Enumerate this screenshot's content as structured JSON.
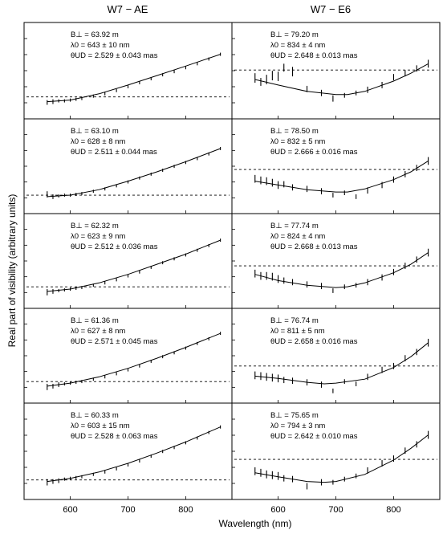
{
  "titles": {
    "left": "W7 − AE",
    "right": "W7 − E6"
  },
  "ylabel": "Real part of visibility (arbitrary units)",
  "xlabel": "Wavelength (nm)",
  "chart_data": [
    {
      "type": "line",
      "column": "W7 − AE",
      "xlim": [
        520,
        880
      ],
      "x_ticks": [
        600,
        700,
        800
      ],
      "panels": [
        {
          "annotations": [
            "B⊥ = 63.92 m",
            "λ0 = 643 ± 10 nm",
            "θUD = 2.529 ± 0.043 mas"
          ],
          "model": {
            "x": [
              560,
              600,
              650,
              700,
              750,
              800,
              860
            ],
            "y": [
              0.12,
              0.14,
              0.22,
              0.33,
              0.45,
              0.57,
              0.72
            ]
          },
          "data": {
            "x": [
              560,
              570,
              580,
              590,
              600,
              610,
              620,
              640,
              660,
              680,
              700,
              720,
              740,
              760,
              780,
              800,
              820,
              840,
              860
            ],
            "y": [
              0.11,
              0.12,
              0.13,
              0.13,
              0.14,
              0.15,
              0.16,
              0.19,
              0.22,
              0.26,
              0.31,
              0.36,
              0.41,
              0.46,
              0.5,
              0.55,
              0.6,
              0.66,
              0.72
            ],
            "err": [
              0.03,
              0.03,
              0.02,
              0.02,
              0.02,
              0.02,
              0.02,
              0.02,
              0.02,
              0.02,
              0.02,
              0.02,
              0.02,
              0.02,
              0.02,
              0.02,
              0.02,
              0.02,
              0.02
            ]
          },
          "zero_level": 0.18
        },
        {
          "annotations": [
            "B⊥ = 63.10 m",
            "λ0 = 628 ± 8 nm",
            "θUD = 2.511 ± 0.044 mas"
          ],
          "model": {
            "x": [
              560,
              600,
              650,
              700,
              750,
              800,
              860
            ],
            "y": [
              0.12,
              0.14,
              0.21,
              0.32,
              0.44,
              0.57,
              0.74
            ]
          },
          "data": {
            "x": [
              560,
              570,
              580,
              590,
              600,
              610,
              620,
              640,
              660,
              680,
              700,
              720,
              740,
              760,
              780,
              800,
              820,
              840,
              860
            ],
            "y": [
              0.15,
              0.12,
              0.13,
              0.14,
              0.14,
              0.15,
              0.16,
              0.19,
              0.22,
              0.26,
              0.31,
              0.36,
              0.41,
              0.46,
              0.51,
              0.56,
              0.61,
              0.67,
              0.74
            ],
            "err": [
              0.04,
              0.03,
              0.02,
              0.02,
              0.02,
              0.02,
              0.02,
              0.02,
              0.02,
              0.02,
              0.02,
              0.02,
              0.02,
              0.02,
              0.02,
              0.02,
              0.02,
              0.02,
              0.02
            ]
          },
          "zero_level": 0.14
        },
        {
          "annotations": [
            "B⊥ = 62.32 m",
            "λ0 = 623 ± 9 nm",
            "θUD = 2.512 ± 0.036 mas"
          ],
          "model": {
            "x": [
              560,
              600,
              650,
              700,
              750,
              800,
              860
            ],
            "y": [
              0.12,
              0.15,
              0.23,
              0.34,
              0.47,
              0.6,
              0.78
            ]
          },
          "data": {
            "x": [
              560,
              570,
              580,
              590,
              600,
              610,
              620,
              640,
              660,
              680,
              700,
              720,
              740,
              760,
              780,
              800,
              820,
              840,
              860
            ],
            "y": [
              0.11,
              0.12,
              0.13,
              0.14,
              0.15,
              0.16,
              0.17,
              0.2,
              0.23,
              0.27,
              0.32,
              0.37,
              0.43,
              0.49,
              0.54,
              0.59,
              0.65,
              0.71,
              0.78
            ],
            "err": [
              0.04,
              0.03,
              0.02,
              0.02,
              0.02,
              0.02,
              0.02,
              0.02,
              0.02,
              0.02,
              0.02,
              0.02,
              0.02,
              0.02,
              0.02,
              0.02,
              0.02,
              0.02,
              0.02
            ]
          },
          "zero_level": 0.18
        },
        {
          "annotations": [
            "B⊥ = 61.36 m",
            "λ0 = 627 ± 8 nm",
            "θUD = 2.571 ± 0.045 mas"
          ],
          "model": {
            "x": [
              560,
              600,
              650,
              700,
              750,
              800,
              860
            ],
            "y": [
              0.12,
              0.16,
              0.24,
              0.35,
              0.48,
              0.62,
              0.8
            ]
          },
          "data": {
            "x": [
              560,
              570,
              580,
              590,
              600,
              610,
              620,
              640,
              660,
              680,
              700,
              720,
              740,
              760,
              780,
              800,
              820,
              840,
              860
            ],
            "y": [
              0.11,
              0.12,
              0.14,
              0.15,
              0.16,
              0.17,
              0.18,
              0.21,
              0.24,
              0.28,
              0.33,
              0.38,
              0.44,
              0.5,
              0.55,
              0.61,
              0.67,
              0.73,
              0.8
            ],
            "err": [
              0.04,
              0.03,
              0.03,
              0.02,
              0.02,
              0.02,
              0.02,
              0.02,
              0.02,
              0.02,
              0.02,
              0.02,
              0.02,
              0.02,
              0.02,
              0.02,
              0.02,
              0.02,
              0.02
            ]
          },
          "zero_level": 0.18
        },
        {
          "annotations": [
            "B⊥ = 60.33 m",
            "λ0 = 603 ± 15 nm",
            "θUD = 2.528 ± 0.063 mas"
          ],
          "model": {
            "x": [
              560,
              600,
              650,
              700,
              750,
              800,
              860
            ],
            "y": [
              0.13,
              0.17,
              0.25,
              0.36,
              0.49,
              0.63,
              0.82
            ]
          },
          "data": {
            "x": [
              560,
              570,
              580,
              590,
              600,
              610,
              620,
              640,
              660,
              680,
              700,
              720,
              740,
              760,
              780,
              800,
              820,
              840,
              860
            ],
            "y": [
              0.12,
              0.13,
              0.14,
              0.16,
              0.17,
              0.18,
              0.19,
              0.22,
              0.25,
              0.29,
              0.34,
              0.39,
              0.45,
              0.51,
              0.56,
              0.62,
              0.68,
              0.75,
              0.82
            ],
            "err": [
              0.04,
              0.03,
              0.03,
              0.02,
              0.02,
              0.02,
              0.02,
              0.02,
              0.02,
              0.02,
              0.02,
              0.02,
              0.02,
              0.02,
              0.02,
              0.02,
              0.02,
              0.02,
              0.02
            ]
          },
          "zero_level": 0.15
        }
      ]
    },
    {
      "type": "line",
      "column": "W7 − E6",
      "xlim": [
        520,
        880
      ],
      "x_ticks": [
        600,
        700,
        800
      ],
      "panels": [
        {
          "annotations": [
            "B⊥ = 79.20 m",
            "λ0 = 834 ± 4 nm",
            "θUD = 2.648 ± 0.013 mas"
          ],
          "model": {
            "x": [
              560,
              600,
              650,
              700,
              720,
              750,
              800,
              830,
              860
            ],
            "y": [
              0.4,
              0.33,
              0.25,
              0.21,
              0.21,
              0.25,
              0.38,
              0.48,
              0.6
            ]
          },
          "data": {
            "x": [
              560,
              570,
              580,
              590,
              600,
              610,
              625,
              650,
              675,
              695,
              715,
              735,
              755,
              780,
              800,
              820,
              840,
              860
            ],
            "y": [
              0.42,
              0.37,
              0.4,
              0.45,
              0.44,
              0.55,
              0.5,
              0.28,
              0.23,
              0.16,
              0.2,
              0.23,
              0.27,
              0.33,
              0.43,
              0.48,
              0.54,
              0.6
            ],
            "err": [
              0.06,
              0.05,
              0.06,
              0.06,
              0.06,
              0.05,
              0.06,
              0.04,
              0.04,
              0.04,
              0.03,
              0.03,
              0.04,
              0.04,
              0.04,
              0.04,
              0.04,
              0.05
            ]
          },
          "zero_level": 0.52
        },
        {
          "annotations": [
            "B⊥ = 78.50 m",
            "λ0 = 832 ± 5 nm",
            "θUD = 2.666 ± 0.016 mas"
          ],
          "model": {
            "x": [
              560,
              600,
              650,
              700,
              720,
              750,
              800,
              830,
              860
            ],
            "y": [
              0.32,
              0.27,
              0.21,
              0.18,
              0.18,
              0.22,
              0.34,
              0.44,
              0.58
            ]
          },
          "data": {
            "x": [
              560,
              570,
              580,
              590,
              600,
              610,
              625,
              650,
              675,
              695,
              715,
              735,
              755,
              780,
              800,
              820,
              840,
              860
            ],
            "y": [
              0.35,
              0.33,
              0.32,
              0.3,
              0.27,
              0.28,
              0.24,
              0.22,
              0.19,
              0.14,
              0.17,
              0.12,
              0.2,
              0.27,
              0.34,
              0.41,
              0.49,
              0.58
            ],
            "err": [
              0.05,
              0.05,
              0.05,
              0.05,
              0.05,
              0.04,
              0.04,
              0.04,
              0.04,
              0.03,
              0.03,
              0.03,
              0.04,
              0.04,
              0.04,
              0.04,
              0.04,
              0.05
            ]
          },
          "zero_level": 0.47
        },
        {
          "annotations": [
            "B⊥ = 77.74 m",
            "λ0 = 824 ± 4 nm",
            "θUD = 2.668 ± 0.013 mas"
          ],
          "model": {
            "x": [
              560,
              600,
              650,
              700,
              720,
              750,
              800,
              830,
              860
            ],
            "y": [
              0.34,
              0.26,
              0.2,
              0.17,
              0.18,
              0.23,
              0.36,
              0.47,
              0.62
            ]
          },
          "data": {
            "x": [
              560,
              570,
              580,
              590,
              600,
              610,
              625,
              650,
              675,
              695,
              715,
              735,
              755,
              780,
              800,
              820,
              840,
              860
            ],
            "y": [
              0.35,
              0.32,
              0.32,
              0.31,
              0.28,
              0.26,
              0.24,
              0.21,
              0.19,
              0.13,
              0.18,
              0.2,
              0.24,
              0.3,
              0.37,
              0.45,
              0.53,
              0.62
            ],
            "err": [
              0.05,
              0.05,
              0.05,
              0.05,
              0.05,
              0.04,
              0.04,
              0.04,
              0.04,
              0.03,
              0.03,
              0.03,
              0.04,
              0.04,
              0.04,
              0.04,
              0.04,
              0.05
            ]
          },
          "zero_level": 0.45
        },
        {
          "annotations": [
            "B⊥ = 76.74 m",
            "λ0 = 811 ± 5 nm",
            "θUD = 2.658 ± 0.016 mas"
          ],
          "model": {
            "x": [
              560,
              600,
              650,
              680,
              700,
              750,
              800,
              830,
              860
            ],
            "y": [
              0.25,
              0.22,
              0.17,
              0.15,
              0.16,
              0.21,
              0.36,
              0.5,
              0.68
            ]
          },
          "data": {
            "x": [
              560,
              570,
              580,
              590,
              600,
              610,
              625,
              650,
              675,
              695,
              715,
              735,
              755,
              780,
              800,
              820,
              840,
              860
            ],
            "y": [
              0.26,
              0.25,
              0.24,
              0.23,
              0.22,
              0.2,
              0.19,
              0.17,
              0.14,
              0.06,
              0.18,
              0.15,
              0.24,
              0.33,
              0.38,
              0.48,
              0.56,
              0.68
            ],
            "err": [
              0.05,
              0.05,
              0.05,
              0.05,
              0.05,
              0.04,
              0.04,
              0.04,
              0.04,
              0.03,
              0.03,
              0.03,
              0.04,
              0.04,
              0.04,
              0.04,
              0.04,
              0.05
            ]
          },
          "zero_level": 0.38
        },
        {
          "annotations": [
            "B⊥ = 75.65 m",
            "λ0 = 794 ± 3 nm",
            "θUD = 2.642 ± 0.010 mas"
          ],
          "model": {
            "x": [
              560,
              600,
              650,
              680,
              700,
              750,
              800,
              830,
              860
            ],
            "y": [
              0.24,
              0.19,
              0.13,
              0.12,
              0.13,
              0.22,
              0.4,
              0.55,
              0.72
            ]
          },
          "data": {
            "x": [
              560,
              570,
              580,
              590,
              600,
              610,
              625,
              650,
              675,
              695,
              715,
              735,
              755,
              780,
              800,
              820,
              840,
              860
            ],
            "y": [
              0.26,
              0.24,
              0.22,
              0.21,
              0.2,
              0.17,
              0.16,
              0.07,
              0.12,
              0.12,
              0.16,
              0.2,
              0.27,
              0.36,
              0.42,
              0.52,
              0.6,
              0.72
            ],
            "err": [
              0.05,
              0.05,
              0.05,
              0.05,
              0.05,
              0.04,
              0.04,
              0.04,
              0.04,
              0.03,
              0.03,
              0.03,
              0.04,
              0.04,
              0.04,
              0.04,
              0.04,
              0.05
            ]
          },
          "zero_level": 0.41
        }
      ]
    }
  ]
}
